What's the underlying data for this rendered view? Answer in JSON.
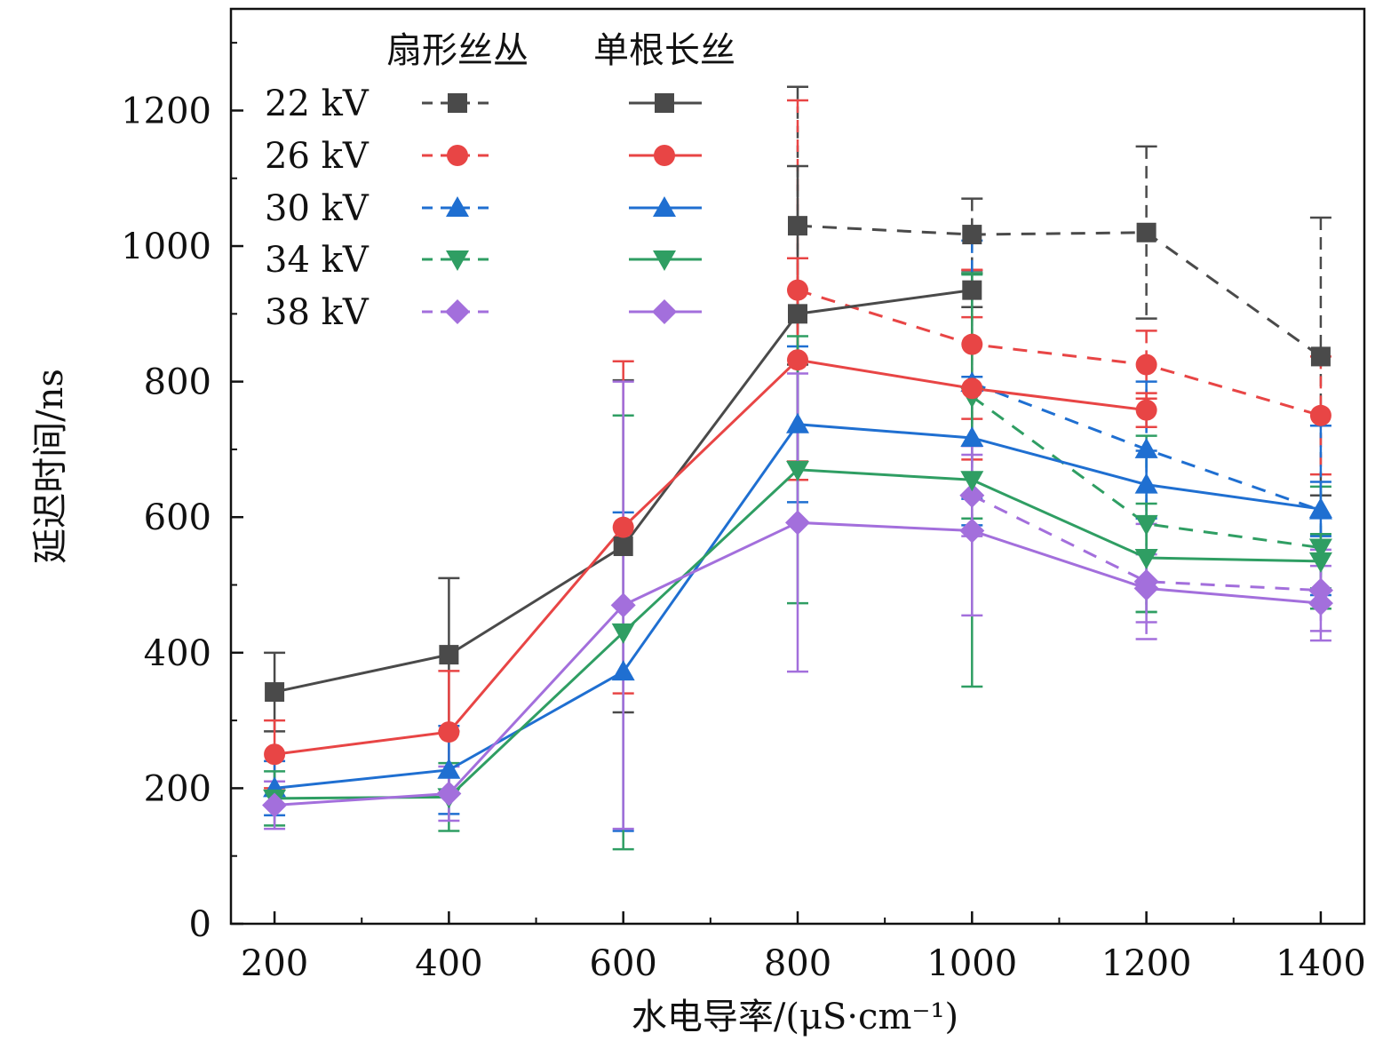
{
  "chart_data": {
    "type": "line",
    "xlabel": "水电导率/(μS·cm⁻¹)",
    "ylabel": "延迟时间/ns",
    "categories": [
      200,
      400,
      600,
      800,
      1000,
      1200,
      1400
    ],
    "xlim": [
      150,
      1450
    ],
    "ylim": [
      0,
      1350
    ],
    "yticks": [
      0,
      200,
      400,
      600,
      800,
      1000,
      1200
    ],
    "legend": {
      "position": "top-left",
      "dashed_header": "扇形丝丛",
      "solid_header": "单根长丝",
      "entries": [
        "22 kV",
        "26 kV",
        "30 kV",
        "34 kV",
        "38 kV"
      ]
    },
    "series": [
      {
        "name": "22 kV",
        "group": "单根长丝",
        "style": "solid",
        "marker": "square",
        "color": "#4a4a4a",
        "x": [
          200,
          400,
          600,
          800,
          1000
        ],
        "y": [
          342,
          397,
          557,
          900,
          935
        ],
        "err": [
          58,
          113,
          245,
          218,
          25
        ]
      },
      {
        "name": "22 kV",
        "group": "扇形丝丛",
        "style": "dashed",
        "marker": "square",
        "color": "#4a4a4a",
        "x": [
          800,
          1000,
          1200,
          1400
        ],
        "y": [
          1030,
          1017,
          1020,
          837
        ],
        "err": [
          205,
          53,
          127,
          205
        ]
      },
      {
        "name": "26 kV",
        "group": "单根长丝",
        "style": "solid",
        "marker": "circle",
        "color": "#e84545",
        "x": [
          200,
          400,
          600,
          800,
          1000,
          1200
        ],
        "y": [
          250,
          283,
          585,
          832,
          790,
          758
        ],
        "err": [
          50,
          90,
          245,
          150,
          105,
          25
        ]
      },
      {
        "name": "26 kV",
        "group": "扇形丝丛",
        "style": "dashed",
        "marker": "circle",
        "color": "#e84545",
        "x": [
          800,
          1000,
          1200,
          1400
        ],
        "y": [
          935,
          855,
          825,
          750
        ],
        "err": [
          280,
          110,
          50,
          87
        ]
      },
      {
        "name": "30 kV",
        "group": "单根长丝",
        "style": "solid",
        "marker": "triangle-up",
        "color": "#1f6fd1",
        "x": [
          200,
          400,
          600,
          800,
          1000,
          1200,
          1400
        ],
        "y": [
          200,
          227,
          372,
          737,
          717,
          648,
          612
        ],
        "err": [
          40,
          65,
          235,
          115,
          90,
          50,
          40
        ]
      },
      {
        "name": "30 kV",
        "group": "扇形丝丛",
        "style": "dashed",
        "marker": "triangle-up",
        "color": "#1f6fd1",
        "x": [
          1000,
          1200,
          1400
        ],
        "y": [
          798,
          700,
          610
        ],
        "err": [
          210,
          100,
          125
        ]
      },
      {
        "name": "34 kV",
        "group": "单根长丝",
        "style": "solid",
        "marker": "triangle-down",
        "color": "#2f9e63",
        "x": [
          200,
          400,
          600,
          800,
          1000,
          1200,
          1400
        ],
        "y": [
          185,
          187,
          430,
          670,
          655,
          540,
          535
        ],
        "err": [
          40,
          50,
          320,
          197,
          305,
          80,
          40
        ]
      },
      {
        "name": "34 kV",
        "group": "扇形丝丛",
        "style": "dashed",
        "marker": "triangle-down",
        "color": "#2f9e63",
        "x": [
          1000,
          1200,
          1400
        ],
        "y": [
          778,
          590,
          555
        ],
        "err": [
          180,
          130,
          90
        ]
      },
      {
        "name": "38 kV",
        "group": "单根长丝",
        "style": "solid",
        "marker": "diamond",
        "color": "#a36fdc",
        "x": [
          200,
          400,
          600,
          800,
          1000,
          1200,
          1400
        ],
        "y": [
          175,
          192,
          470,
          592,
          580,
          495,
          473
        ],
        "err": [
          35,
          40,
          330,
          220,
          125,
          50,
          55
        ]
      },
      {
        "name": "38 kV",
        "group": "扇形丝丛",
        "style": "dashed",
        "marker": "diamond",
        "color": "#a36fdc",
        "x": [
          1000,
          1200,
          1400
        ],
        "y": [
          632,
          505,
          492
        ],
        "err": [
          60,
          85,
          60
        ]
      }
    ]
  }
}
